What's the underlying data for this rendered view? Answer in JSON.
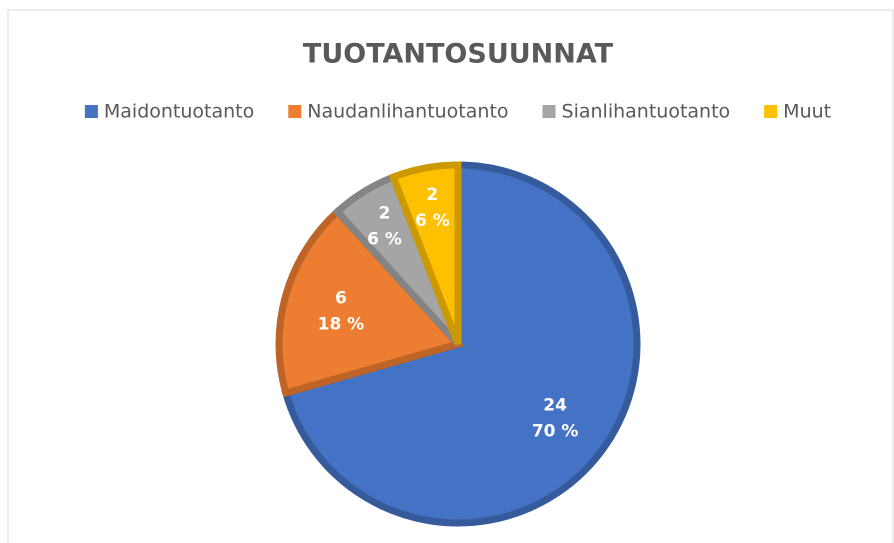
{
  "chart_data": {
    "type": "pie",
    "title": "TUOTANTOSUUNNAT",
    "categories": [
      "Maidontuotanto",
      "Naudanlihantuotanto",
      "Sianlihantuotanto",
      "Muut"
    ],
    "values": [
      24,
      6,
      2,
      2
    ],
    "percent_labels": [
      "70 %",
      "18 %",
      "6 %",
      "6 %"
    ],
    "colors": [
      "#4472c4",
      "#ed7d31",
      "#a5a5a5",
      "#ffc000"
    ],
    "legend": "top"
  }
}
